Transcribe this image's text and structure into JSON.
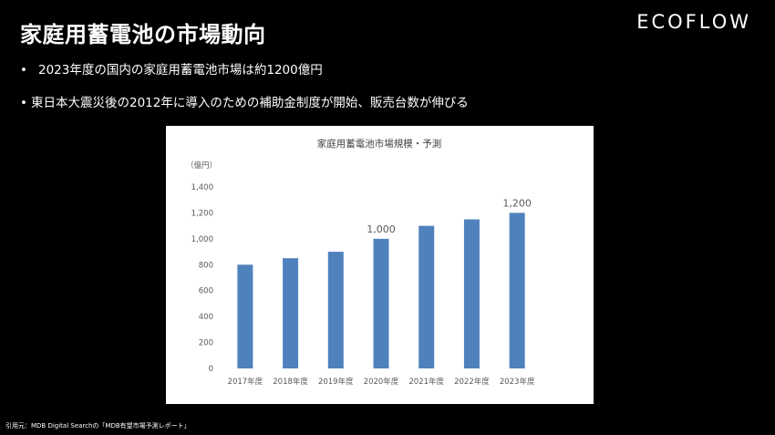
{
  "slide": {
    "title": "家庭用蓄電池の市場動向",
    "logo": "ECOFLOW",
    "bullets": [
      "2023年度の国内の家庭用蓄電池市場は約1200億円",
      "東日本大震災後の2012年に導入のための補助金制度が開始、販売台数が伸びる"
    ],
    "bullet_symbol": "•",
    "citation": "引用元：MDB Digital Searchの「MDB有望市場予測レポート」"
  },
  "colors": {
    "background": "#000000",
    "bar": "#4F81BD",
    "axis_text": "#595959",
    "panel": "#ffffff"
  },
  "chart_data": {
    "type": "bar",
    "title": "家庭用蓄電池市場規模・予測",
    "ylabel": "（億円）",
    "xlabel": "",
    "categories": [
      "2017年度",
      "2018年度",
      "2019年度",
      "2020年度",
      "2021年度",
      "2022年度",
      "2023年度"
    ],
    "values": [
      800,
      850,
      900,
      1000,
      1100,
      1150,
      1200
    ],
    "ylim": [
      0,
      1400
    ],
    "yticks": [
      "0",
      "200",
      "400",
      "600",
      "800",
      "1,000",
      "1,200",
      "1,400"
    ],
    "data_labels": [
      {
        "category": "2020年度",
        "text": "1,000"
      },
      {
        "category": "2023年度",
        "text": "1,200"
      }
    ],
    "grid": false,
    "legend": "none"
  }
}
